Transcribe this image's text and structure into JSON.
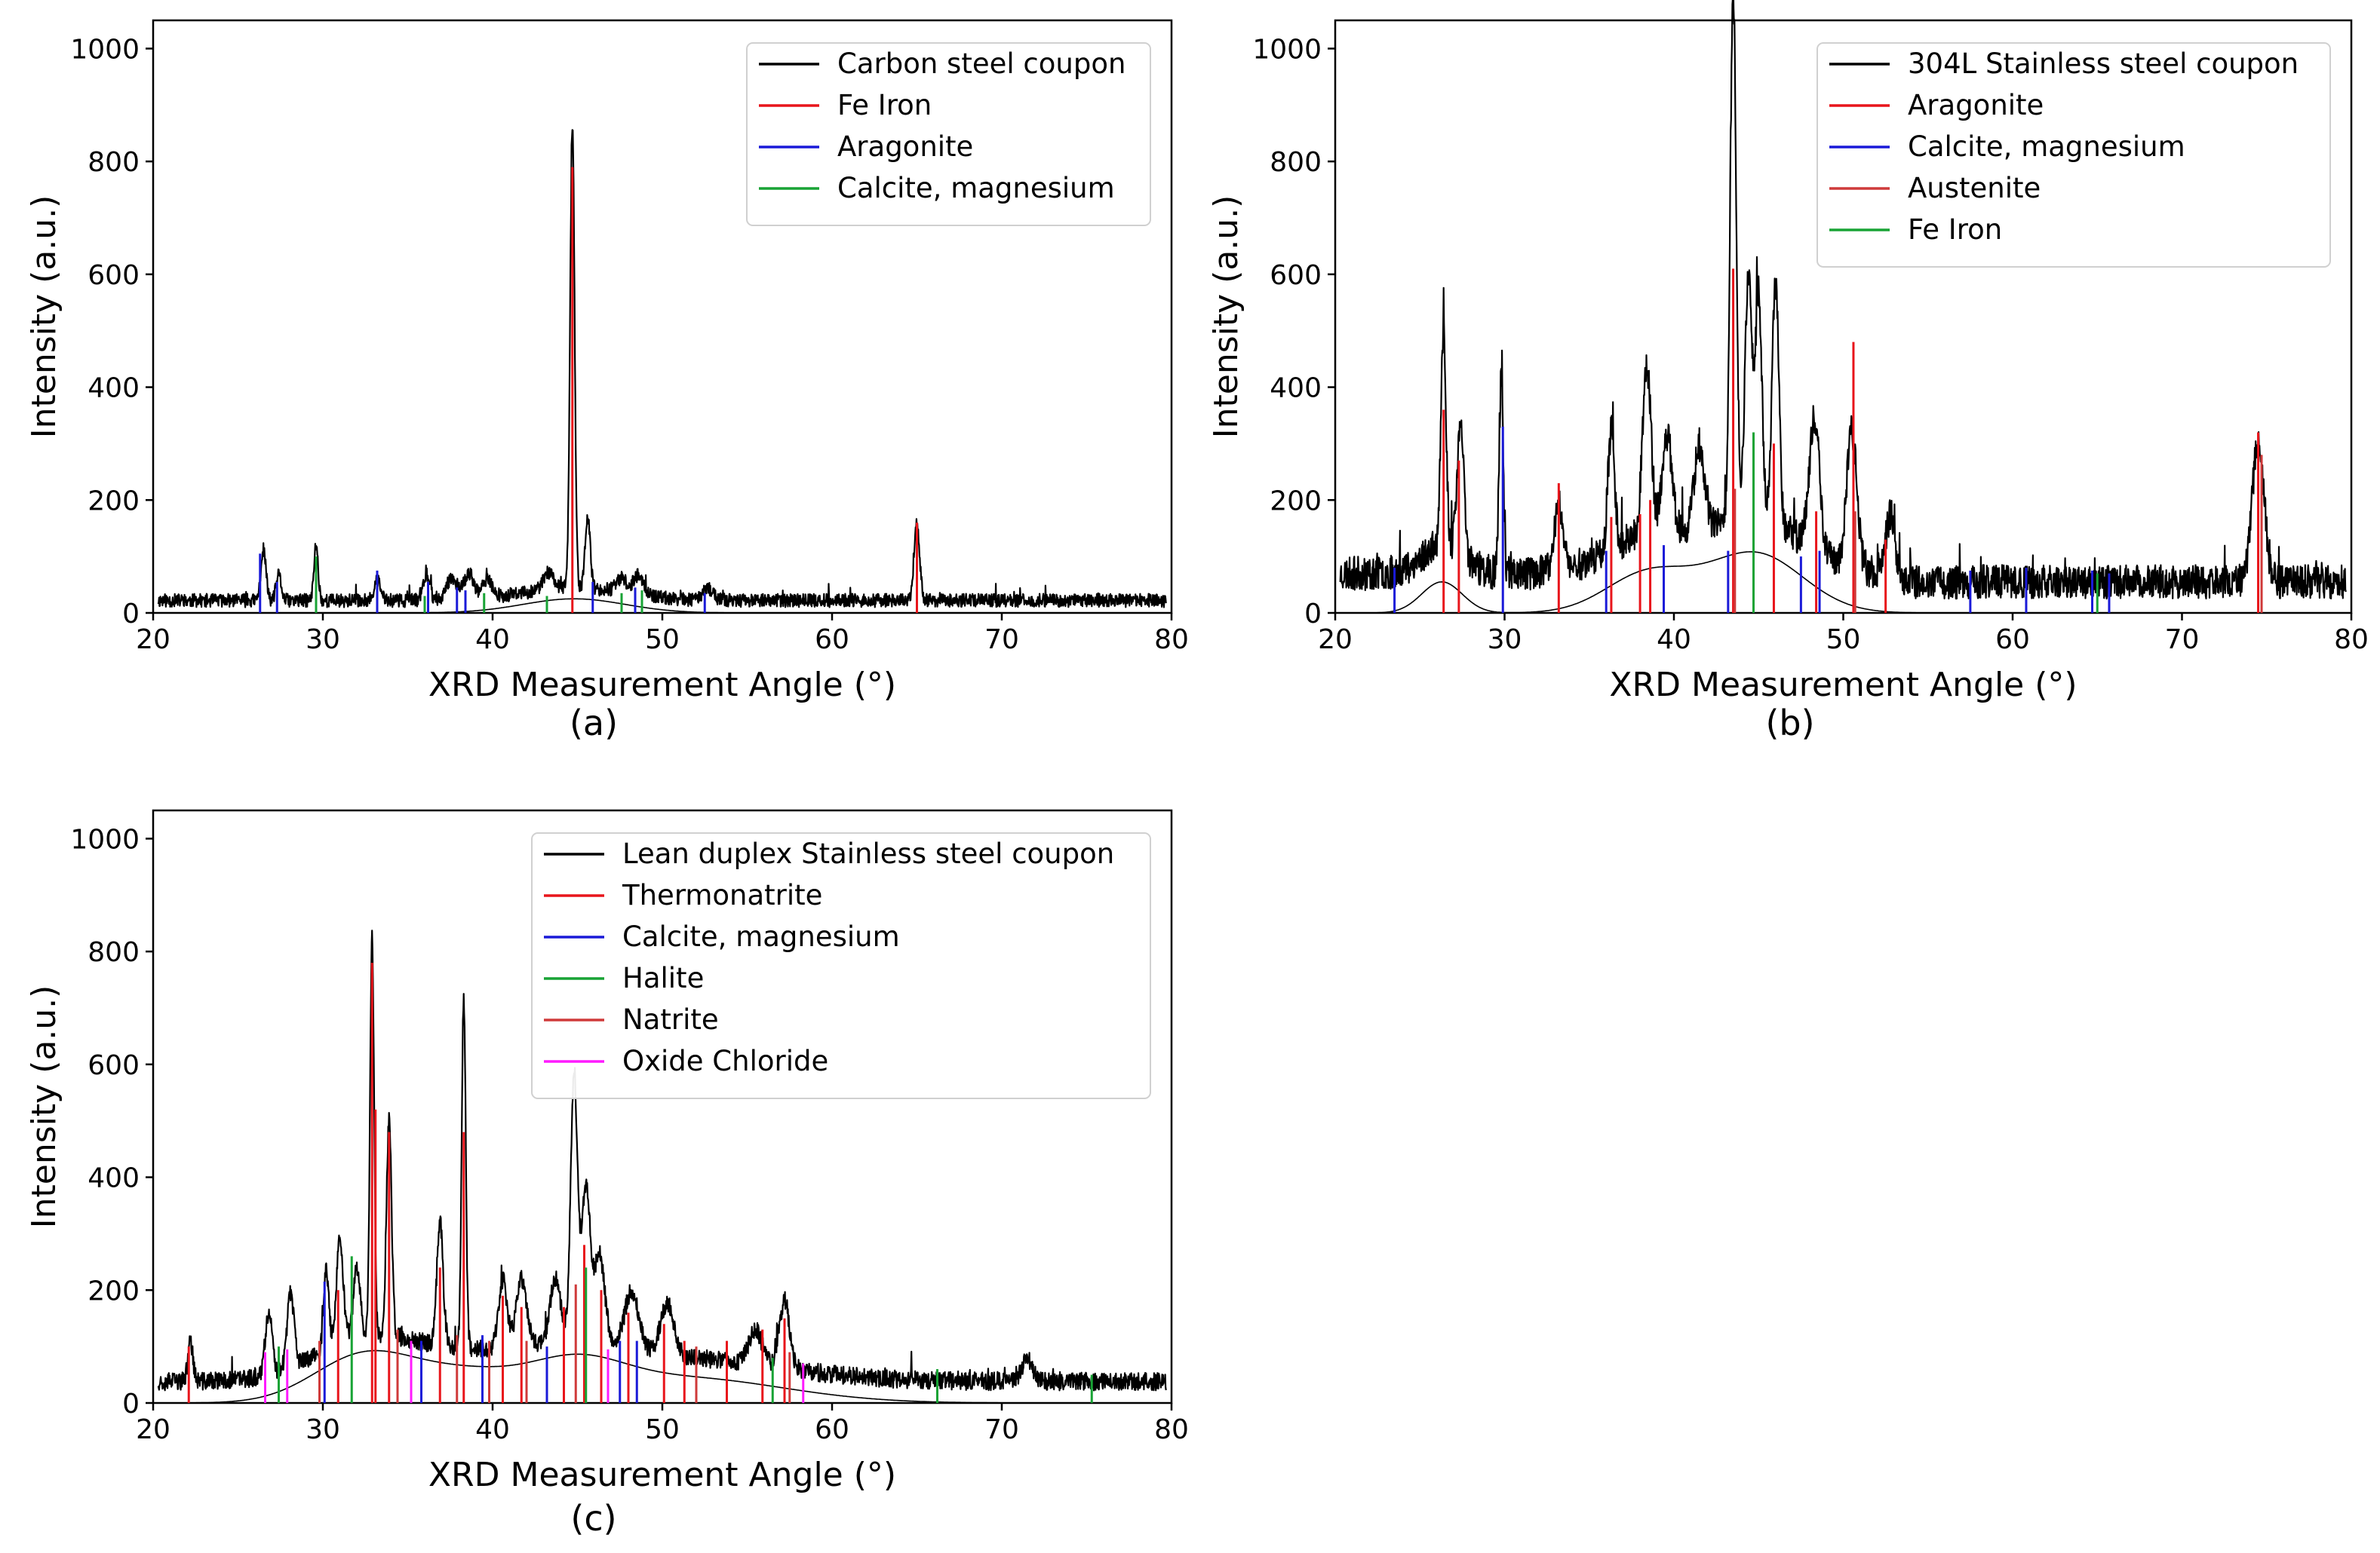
{
  "figure": {
    "captions": [
      "(a)",
      "(b)",
      "(c)"
    ]
  },
  "chart_data": [
    {
      "type": "line",
      "id": "a",
      "xlabel": "XRD Measurement Angle (°)",
      "ylabel": "Intensity (a.u.)",
      "xlim": [
        20,
        80
      ],
      "ylim": [
        0,
        1050
      ],
      "xticks": [
        20,
        30,
        40,
        50,
        60,
        70,
        80
      ],
      "yticks": [
        0,
        200,
        400,
        600,
        800,
        1000
      ],
      "legend_position": "top-right",
      "series": [
        {
          "name": "Carbon steel coupon",
          "color": "#000000",
          "kind": "pattern",
          "baseline": 22,
          "noise": 12,
          "seed": 11,
          "background_humps": [
            {
              "center": 44.8,
              "height": 25,
              "width": 3.0
            }
          ],
          "peaks": [
            [
              26.5,
              90,
              0.15
            ],
            [
              27.4,
              45,
              0.15
            ],
            [
              29.6,
              100,
              0.12
            ],
            [
              33.2,
              35,
              0.2
            ],
            [
              36.1,
              45,
              0.2
            ],
            [
              37.6,
              40,
              0.3
            ],
            [
              38.6,
              45,
              0.3
            ],
            [
              39.7,
              30,
              0.3
            ],
            [
              43.3,
              30,
              0.3
            ],
            [
              44.7,
              820,
              0.13
            ],
            [
              45.6,
              125,
              0.15
            ],
            [
              47.6,
              25,
              0.3
            ],
            [
              48.6,
              35,
              0.3
            ],
            [
              52.7,
              20,
              0.3
            ],
            [
              65.0,
              135,
              0.16
            ]
          ]
        },
        {
          "name": "Fe Iron",
          "color": "#e8151b",
          "kind": "sticks",
          "sticks": [
            [
              44.7,
              790
            ],
            [
              65.0,
              160
            ]
          ]
        },
        {
          "name": "Aragonite",
          "color": "#1a1ad8",
          "kind": "sticks",
          "sticks": [
            [
              26.3,
              105
            ],
            [
              27.3,
              55
            ],
            [
              33.2,
              75
            ],
            [
              36.2,
              55
            ],
            [
              37.9,
              45
            ],
            [
              38.4,
              40
            ],
            [
              45.9,
              55
            ],
            [
              48.4,
              45
            ],
            [
              52.5,
              35
            ]
          ]
        },
        {
          "name": "Calcite, magnesium",
          "color": "#18a335",
          "kind": "sticks",
          "sticks": [
            [
              29.6,
              100
            ],
            [
              36.0,
              30
            ],
            [
              39.5,
              35
            ],
            [
              43.2,
              30
            ],
            [
              47.6,
              35
            ],
            [
              48.8,
              40
            ]
          ]
        }
      ]
    },
    {
      "type": "line",
      "id": "b",
      "xlabel": "XRD Measurement Angle (°)",
      "ylabel": "Intensity (a.u.)",
      "xlim": [
        20,
        80
      ],
      "ylim": [
        0,
        1050
      ],
      "xticks": [
        20,
        30,
        40,
        50,
        60,
        70,
        80
      ],
      "yticks": [
        0,
        200,
        400,
        600,
        800,
        1000
      ],
      "legend_position": "top-right",
      "series": [
        {
          "name": "304L Stainless steel coupon",
          "color": "#000000",
          "kind": "pattern",
          "baseline": 70,
          "noise": 30,
          "seed": 23,
          "baseline_after": 55,
          "baseline_switch": 53,
          "background_humps": [
            {
              "center": 26.3,
              "height": 55,
              "width": 1.2
            },
            {
              "center": 38.5,
              "height": 70,
              "width": 2.5
            },
            {
              "center": 44.8,
              "height": 105,
              "width": 2.8
            }
          ],
          "peaks": [
            [
              26.4,
              380,
              0.15
            ],
            [
              27.4,
              230,
              0.2
            ],
            [
              29.8,
              340,
              0.12
            ],
            [
              33.2,
              120,
              0.25
            ],
            [
              36.3,
              210,
              0.2
            ],
            [
              38.4,
              300,
              0.25
            ],
            [
              39.6,
              170,
              0.3
            ],
            [
              41.5,
              150,
              0.3
            ],
            [
              43.5,
              940,
              0.18
            ],
            [
              44.4,
              440,
              0.2
            ],
            [
              45.0,
              400,
              0.2
            ],
            [
              46.0,
              430,
              0.2
            ],
            [
              48.3,
              230,
              0.3
            ],
            [
              50.5,
              240,
              0.3
            ],
            [
              52.8,
              100,
              0.3
            ],
            [
              74.5,
              250,
              0.35
            ]
          ]
        },
        {
          "name": "Aragonite",
          "color": "#e8151b",
          "kind": "sticks",
          "sticks": [
            [
              26.4,
              360
            ],
            [
              27.3,
              270
            ],
            [
              33.2,
              230
            ],
            [
              36.3,
              170
            ],
            [
              38.0,
              175
            ],
            [
              38.6,
              200
            ],
            [
              43.5,
              610
            ],
            [
              45.9,
              300
            ],
            [
              48.4,
              180
            ],
            [
              50.6,
              480
            ],
            [
              52.5,
              130
            ],
            [
              74.5,
              320
            ]
          ]
        },
        {
          "name": "Calcite, magnesium",
          "color": "#1a1ad8",
          "kind": "sticks",
          "sticks": [
            [
              23.5,
              80
            ],
            [
              29.9,
              330
            ],
            [
              36.0,
              110
            ],
            [
              39.4,
              120
            ],
            [
              43.2,
              110
            ],
            [
              47.5,
              100
            ],
            [
              48.6,
              110
            ],
            [
              57.5,
              75
            ],
            [
              60.8,
              80
            ],
            [
              64.7,
              75
            ],
            [
              65.7,
              70
            ]
          ]
        },
        {
          "name": "Austenite",
          "color": "#cf3a3a",
          "kind": "sticks",
          "sticks": [
            [
              43.6,
              220
            ],
            [
              50.7,
              180
            ],
            [
              74.7,
              280
            ]
          ]
        },
        {
          "name": "Fe Iron",
          "color": "#18a335",
          "kind": "sticks",
          "sticks": [
            [
              44.7,
              320
            ],
            [
              65.0,
              70
            ]
          ]
        }
      ]
    },
    {
      "type": "line",
      "id": "c",
      "xlabel": "XRD Measurement Angle (°)",
      "ylabel": "Intensity (a.u.)",
      "xlim": [
        20,
        80
      ],
      "ylim": [
        0,
        1050
      ],
      "xticks": [
        20,
        30,
        40,
        50,
        60,
        70,
        80
      ],
      "yticks": [
        0,
        200,
        400,
        600,
        800,
        1000
      ],
      "legend_position": "top-right",
      "series": [
        {
          "name": "Lean duplex Stainless steel coupon",
          "color": "#000000",
          "kind": "pattern",
          "baseline": 38,
          "noise": 16,
          "seed": 37,
          "background_humps": [
            {
              "center": 32.5,
              "height": 85,
              "width": 3.0
            },
            {
              "center": 38.5,
              "height": 45,
              "width": 3.0
            },
            {
              "center": 44.8,
              "height": 55,
              "width": 2.8
            },
            {
              "center": 51.0,
              "height": 45,
              "width": 6.0
            }
          ],
          "peaks": [
            [
              22.2,
              70,
              0.15
            ],
            [
              26.8,
              110,
              0.2
            ],
            [
              28.1,
              130,
              0.2
            ],
            [
              30.2,
              140,
              0.15
            ],
            [
              31.0,
              180,
              0.2
            ],
            [
              32.0,
              120,
              0.2
            ],
            [
              32.9,
              700,
              0.12
            ],
            [
              33.9,
              380,
              0.15
            ],
            [
              36.9,
              220,
              0.18
            ],
            [
              38.3,
              620,
              0.12
            ],
            [
              40.6,
              120,
              0.25
            ],
            [
              41.7,
              120,
              0.3
            ],
            [
              43.7,
              110,
              0.3
            ],
            [
              44.8,
              460,
              0.2
            ],
            [
              45.5,
              270,
              0.25
            ],
            [
              46.3,
              150,
              0.3
            ],
            [
              48.2,
              100,
              0.4
            ],
            [
              50.3,
              90,
              0.4
            ],
            [
              55.5,
              60,
              0.4
            ],
            [
              57.2,
              120,
              0.3
            ],
            [
              71.5,
              40,
              0.3
            ]
          ]
        },
        {
          "name": "Thermonatrite",
          "color": "#e8151b",
          "kind": "sticks",
          "sticks": [
            [
              22.1,
              100
            ],
            [
              30.9,
              200
            ],
            [
              32.9,
              780
            ],
            [
              33.1,
              520
            ],
            [
              33.9,
              480
            ],
            [
              36.9,
              240
            ],
            [
              38.3,
              480
            ],
            [
              40.6,
              190
            ],
            [
              41.7,
              170
            ],
            [
              44.2,
              170
            ],
            [
              45.4,
              280
            ],
            [
              46.4,
              200
            ],
            [
              48.0,
              160
            ],
            [
              50.1,
              140
            ],
            [
              51.3,
              110
            ],
            [
              53.8,
              110
            ],
            [
              55.9,
              130
            ],
            [
              57.2,
              150
            ]
          ]
        },
        {
          "name": "Calcite, magnesium",
          "color": "#1a1ad8",
          "kind": "sticks",
          "sticks": [
            [
              30.1,
              215
            ],
            [
              35.8,
              110
            ],
            [
              39.4,
              120
            ],
            [
              43.2,
              100
            ],
            [
              47.5,
              110
            ],
            [
              48.5,
              110
            ]
          ]
        },
        {
          "name": "Halite",
          "color": "#18a335",
          "kind": "sticks",
          "sticks": [
            [
              27.4,
              100
            ],
            [
              31.7,
              260
            ],
            [
              45.5,
              240
            ],
            [
              56.5,
              80
            ],
            [
              66.2,
              60
            ],
            [
              75.3,
              50
            ]
          ]
        },
        {
          "name": "Natrite",
          "color": "#cf3a3a",
          "kind": "sticks",
          "sticks": [
            [
              29.8,
              110
            ],
            [
              34.4,
              130
            ],
            [
              37.9,
              120
            ],
            [
              39.8,
              110
            ],
            [
              42.0,
              110
            ],
            [
              44.9,
              210
            ],
            [
              52.0,
              100
            ],
            [
              57.5,
              90
            ]
          ]
        },
        {
          "name": "Oxide Chloride",
          "color": "#ff1aff",
          "kind": "sticks",
          "sticks": [
            [
              26.6,
              90
            ],
            [
              27.9,
              95
            ],
            [
              35.2,
              110
            ],
            [
              46.8,
              95
            ],
            [
              58.3,
              70
            ]
          ]
        }
      ]
    }
  ]
}
